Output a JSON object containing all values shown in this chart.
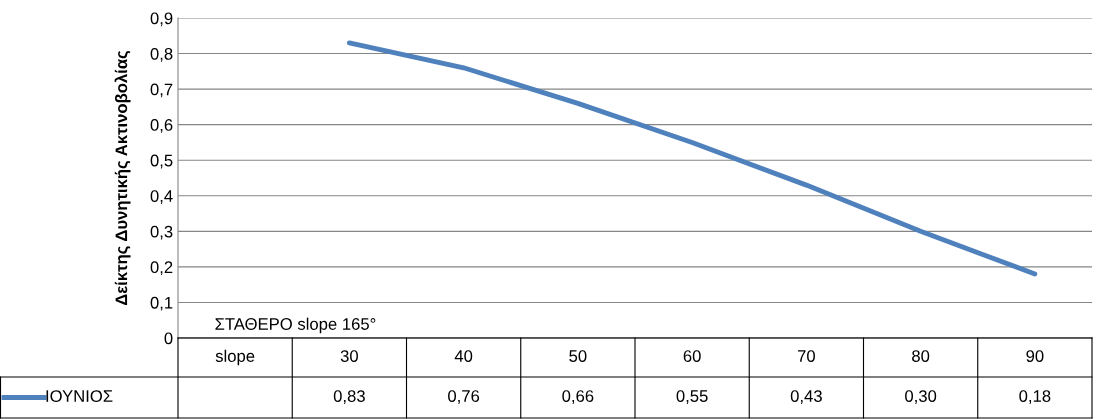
{
  "chart_data": {
    "type": "line",
    "ylabel": "Δείκτης Δυνητικής Ακτινοβολίας",
    "categories": [
      "slope",
      "30",
      "40",
      "50",
      "60",
      "70",
      "80",
      "90"
    ],
    "series": [
      {
        "name": "ΙΟΥΝΙΟΣ",
        "color": "#4f81bd",
        "values": [
          null,
          0.83,
          0.76,
          0.66,
          0.55,
          0.43,
          0.3,
          0.18
        ],
        "value_labels": [
          null,
          "0,83",
          "0,76",
          "0,66",
          "0,55",
          "0,43",
          "0,30",
          "0,18"
        ]
      }
    ],
    "ylim": [
      0,
      0.9
    ],
    "yticks": [
      {
        "value": 0,
        "label": "0"
      },
      {
        "value": 0.1,
        "label": "0,1"
      },
      {
        "value": 0.2,
        "label": "0,2"
      },
      {
        "value": 0.3,
        "label": "0,3"
      },
      {
        "value": 0.4,
        "label": "0,4"
      },
      {
        "value": 0.5,
        "label": "0,5"
      },
      {
        "value": 0.6,
        "label": "0,6"
      },
      {
        "value": 0.7,
        "label": "0,7"
      },
      {
        "value": 0.8,
        "label": "0,8"
      },
      {
        "value": 0.9,
        "label": "0,9"
      }
    ],
    "grid": "y",
    "legend": "bottom left",
    "marker": "none",
    "line_style": "solid",
    "annotations": [
      "ΣΤΑΘΕΡΟ slope 165°"
    ]
  }
}
